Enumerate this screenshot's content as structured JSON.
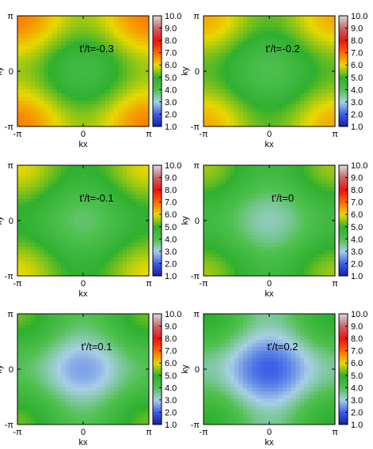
{
  "chart_data": [
    {
      "type": "heatmap",
      "annotation": "t'/t=-0.3",
      "xlabel": "kx",
      "ylabel": "ky",
      "x_ticks": [
        "-π",
        "0",
        "π"
      ],
      "y_ticks": [
        "-π",
        "0",
        "π"
      ],
      "colorbar": {
        "range": [
          1.0,
          10.0
        ],
        "ticks": [
          "1.0",
          "2.0",
          "3.0",
          "4.0",
          "5.0",
          "6.0",
          "7.0",
          "8.0",
          "9.0",
          "10.0"
        ]
      },
      "corner_value": 6.8,
      "center_value": 4.4
    },
    {
      "type": "heatmap",
      "annotation": "t'/t=-0.2",
      "xlabel": "kx",
      "ylabel": "ky",
      "x_ticks": [
        "-π",
        "0",
        "π"
      ],
      "y_ticks": [
        "-π",
        "0",
        "π"
      ],
      "colorbar": {
        "range": [
          1.0,
          10.0
        ],
        "ticks": [
          "1.0",
          "2.0",
          "3.0",
          "4.0",
          "5.0",
          "6.0",
          "7.0",
          "8.0",
          "9.0",
          "10.0"
        ]
      },
      "corner_value": 6.4,
      "center_value": 4.1
    },
    {
      "type": "heatmap",
      "annotation": "t'/t=-0.1",
      "xlabel": "kx",
      "ylabel": "ky",
      "x_ticks": [
        "-π",
        "0",
        "π"
      ],
      "y_ticks": [
        "-π",
        "0",
        "π"
      ],
      "colorbar": {
        "range": [
          1.0,
          10.0
        ],
        "ticks": [
          "1.0",
          "2.0",
          "3.0",
          "4.0",
          "5.0",
          "6.0",
          "7.0",
          "8.0",
          "9.0",
          "10.0"
        ]
      },
      "corner_value": 6.0,
      "center_value": 3.8
    },
    {
      "type": "heatmap",
      "annotation": "t'/t=0",
      "xlabel": "kx",
      "ylabel": "ky",
      "x_ticks": [
        "-π",
        "0",
        "π"
      ],
      "y_ticks": [
        "-π",
        "0",
        "π"
      ],
      "colorbar": {
        "range": [
          1.0,
          10.0
        ],
        "ticks": [
          "1.0",
          "2.0",
          "3.0",
          "4.0",
          "5.0",
          "6.0",
          "7.0",
          "8.0",
          "9.0",
          "10.0"
        ]
      },
      "corner_value": 5.6,
      "center_value": 3.3
    },
    {
      "type": "heatmap",
      "annotation": "t'/t=0.1",
      "xlabel": "kx",
      "ylabel": "ky",
      "x_ticks": [
        "-π",
        "0",
        "π"
      ],
      "y_ticks": [
        "-π",
        "0",
        "π"
      ],
      "colorbar": {
        "range": [
          1.0,
          10.0
        ],
        "ticks": [
          "1.0",
          "2.0",
          "3.0",
          "4.0",
          "5.0",
          "6.0",
          "7.0",
          "8.0",
          "9.0",
          "10.0"
        ]
      },
      "corner_value": 5.3,
      "center_value": 2.6
    },
    {
      "type": "heatmap",
      "annotation": "t'/t=0.2",
      "xlabel": "kx",
      "ylabel": "ky",
      "x_ticks": [
        "-π",
        "0",
        "π"
      ],
      "y_ticks": [
        "-π",
        "0",
        "π"
      ],
      "colorbar": {
        "range": [
          1.0,
          10.0
        ],
        "ticks": [
          "1.0",
          "2.0",
          "3.0",
          "4.0",
          "5.0",
          "6.0",
          "7.0",
          "8.0",
          "9.0",
          "10.0"
        ]
      },
      "corner_value": 5.0,
      "center_value": 2.0
    }
  ],
  "colormap": {
    "values": [
      1,
      2,
      3,
      4,
      5,
      6,
      7,
      8,
      9,
      10
    ],
    "colors": [
      "#1a1a9e",
      "#3a5ee8",
      "#a8cfe6",
      "#4fc04f",
      "#2fb02f",
      "#e8d800",
      "#ff6a00",
      "#ee1111",
      "#c86464",
      "#d8d8d8"
    ]
  }
}
